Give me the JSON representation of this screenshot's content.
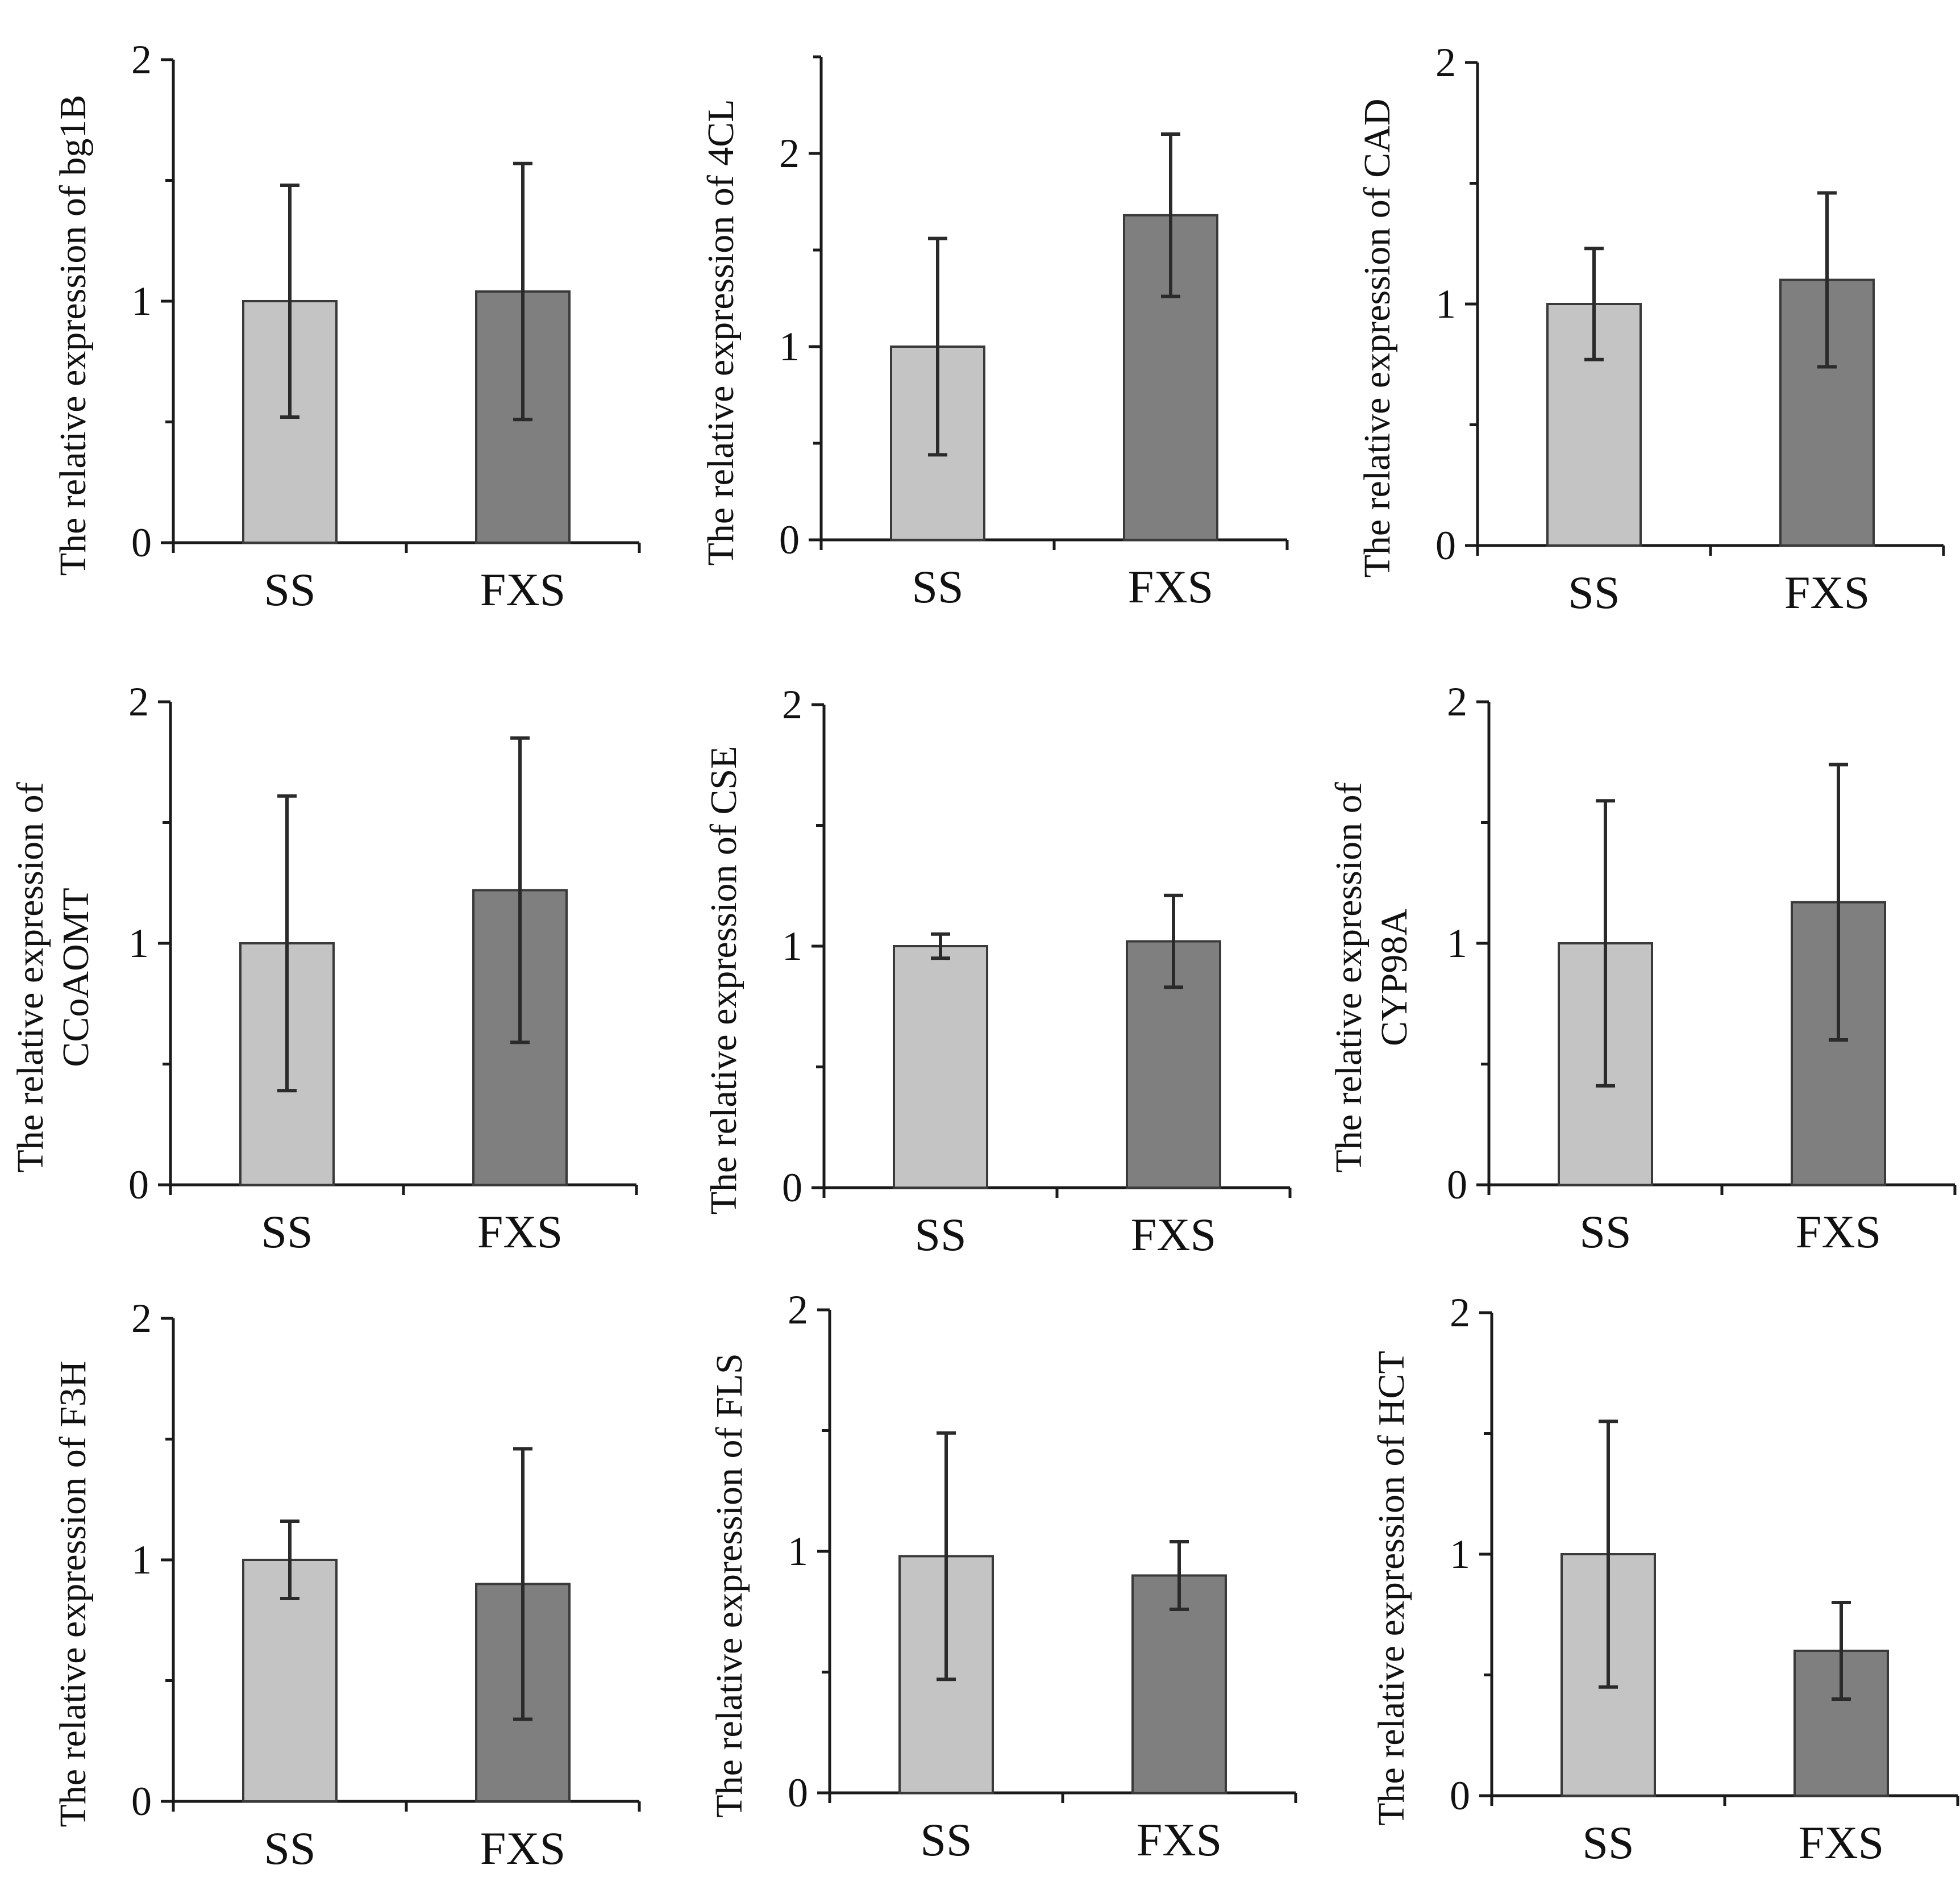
{
  "colors": {
    "SS": "#c4c4c4",
    "FXS": "#7f7f7f",
    "axis": "#1a1a1a"
  },
  "chart_data": [
    {
      "type": "bar",
      "categories": [
        "SS",
        "FXS"
      ],
      "values": [
        1.0,
        1.04
      ],
      "errors": [
        0.48,
        0.53
      ],
      "ylabel": [
        "The relative expression of bg1B"
      ],
      "ylim": [
        0,
        2
      ],
      "yticks": [
        "0",
        "1",
        "2"
      ],
      "xlabel": ""
    },
    {
      "type": "bar",
      "categories": [
        "SS",
        "FXS"
      ],
      "values": [
        1.0,
        1.68
      ],
      "errors": [
        0.56,
        0.42
      ],
      "ylabel": [
        "The relative expression of 4CL"
      ],
      "ylim": [
        0,
        2.5
      ],
      "yticks": [
        "0",
        "1",
        "2"
      ],
      "xlabel": ""
    },
    {
      "type": "bar",
      "categories": [
        "SS",
        "FXS"
      ],
      "values": [
        1.0,
        1.1
      ],
      "errors": [
        0.23,
        0.36
      ],
      "ylabel": [
        "The relative expression of CAD"
      ],
      "ylim": [
        0,
        2
      ],
      "yticks": [
        "0",
        "1",
        "2"
      ],
      "xlabel": ""
    },
    {
      "type": "bar",
      "categories": [
        "SS",
        "FXS"
      ],
      "values": [
        1.0,
        1.22
      ],
      "errors": [
        0.61,
        0.63
      ],
      "ylabel": [
        "The relative expression of",
        "CCoAOMT"
      ],
      "ylim": [
        0,
        2
      ],
      "yticks": [
        "0",
        "1",
        "2"
      ],
      "xlabel": ""
    },
    {
      "type": "bar",
      "categories": [
        "SS",
        "FXS"
      ],
      "values": [
        1.0,
        1.02
      ],
      "errors": [
        0.05,
        0.19
      ],
      "ylabel": [
        "The relative expression of CSE"
      ],
      "ylim": [
        0,
        2
      ],
      "yticks": [
        "0",
        "1",
        "2"
      ],
      "xlabel": ""
    },
    {
      "type": "bar",
      "categories": [
        "SS",
        "FXS"
      ],
      "values": [
        1.0,
        1.17
      ],
      "errors": [
        0.59,
        0.57
      ],
      "ylabel": [
        "The relative expression of",
        "CYP98A"
      ],
      "ylim": [
        0,
        2
      ],
      "yticks": [
        "0",
        "1",
        "2"
      ],
      "xlabel": ""
    },
    {
      "type": "bar",
      "categories": [
        "SS",
        "FXS"
      ],
      "values": [
        1.0,
        0.9
      ],
      "errors": [
        0.16,
        0.56
      ],
      "ylabel": [
        "The relative expression of F3H"
      ],
      "ylim": [
        0,
        2
      ],
      "yticks": [
        "0",
        "1",
        "2"
      ],
      "xlabel": ""
    },
    {
      "type": "bar",
      "categories": [
        "SS",
        "FXS"
      ],
      "values": [
        0.98,
        0.9
      ],
      "errors": [
        0.51,
        0.14
      ],
      "ylabel": [
        "The relative expression of FLS"
      ],
      "ylim": [
        0,
        2
      ],
      "yticks": [
        "0",
        "1",
        "2"
      ],
      "xlabel": ""
    },
    {
      "type": "bar",
      "categories": [
        "SS",
        "FXS"
      ],
      "values": [
        1.0,
        0.6
      ],
      "errors": [
        0.55,
        0.2
      ],
      "ylabel": [
        "The relative expression of HCT"
      ],
      "ylim": [
        0,
        2
      ],
      "yticks": [
        "0",
        "1",
        "2"
      ],
      "xlabel": ""
    }
  ]
}
